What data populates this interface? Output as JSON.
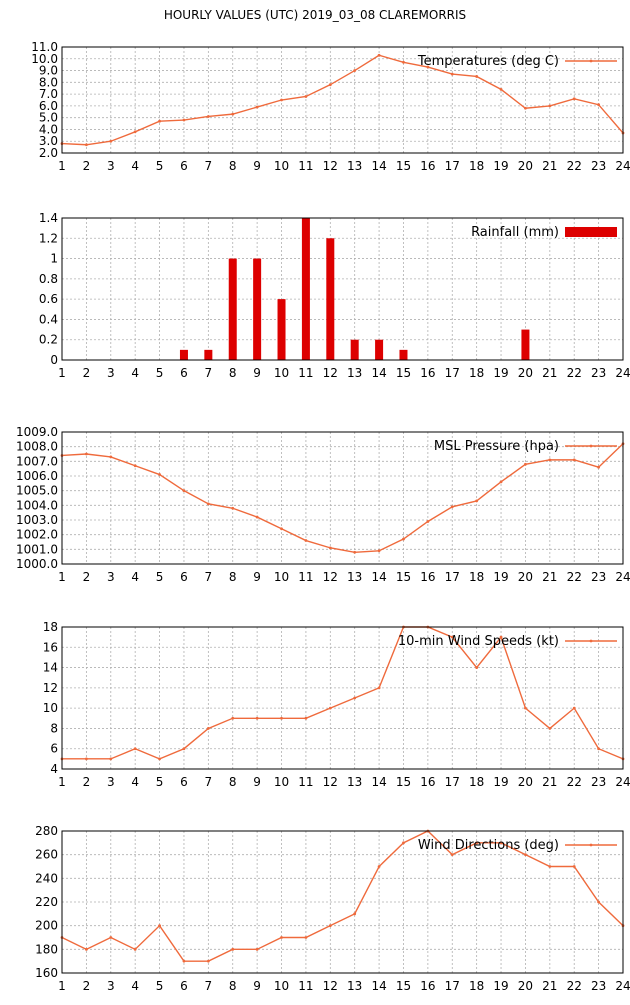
{
  "title": "HOURLY VALUES (UTC) 2019_03_08  CLAREMORRIS",
  "colors": {
    "line": "#ef6a3c",
    "bar": "#dd0000",
    "grid": "#b0b0b0",
    "axis": "#000000"
  },
  "chart_data": [
    {
      "type": "line",
      "legend": "Temperatures (deg C)",
      "legend_position": "top-right",
      "grid": true,
      "x": [
        1,
        2,
        3,
        4,
        5,
        6,
        7,
        8,
        9,
        10,
        11,
        12,
        13,
        14,
        15,
        16,
        17,
        18,
        19,
        20,
        21,
        22,
        23,
        24
      ],
      "xticks": [
        "1",
        "2",
        "3",
        "4",
        "5",
        "6",
        "7",
        "8",
        "9",
        "10",
        "11",
        "12",
        "13",
        "14",
        "15",
        "16",
        "17",
        "18",
        "19",
        "20",
        "21",
        "22",
        "23",
        "24"
      ],
      "values": [
        2.8,
        2.7,
        3.0,
        3.8,
        4.7,
        4.8,
        5.1,
        5.3,
        5.9,
        6.5,
        6.8,
        7.8,
        9.0,
        10.3,
        9.7,
        9.3,
        8.7,
        8.5,
        7.4,
        5.8,
        6.0,
        6.6,
        6.1,
        3.7
      ],
      "ylim": [
        2.0,
        11.0
      ],
      "yticks": [
        "2.0",
        "3.0",
        "4.0",
        "5.0",
        "6.0",
        "7.0",
        "8.0",
        "9.0",
        "10.0",
        "11.0"
      ]
    },
    {
      "type": "bar",
      "legend": "Rainfall (mm)",
      "legend_position": "top-right",
      "grid": true,
      "x": [
        1,
        2,
        3,
        4,
        5,
        6,
        7,
        8,
        9,
        10,
        11,
        12,
        13,
        14,
        15,
        16,
        17,
        18,
        19,
        20,
        21,
        22,
        23,
        24
      ],
      "xticks": [
        "1",
        "2",
        "3",
        "4",
        "5",
        "6",
        "7",
        "8",
        "9",
        "10",
        "11",
        "12",
        "13",
        "14",
        "15",
        "16",
        "17",
        "18",
        "19",
        "20",
        "21",
        "22",
        "23",
        "24"
      ],
      "values": [
        0,
        0,
        0,
        0,
        0,
        0.1,
        0.1,
        1.0,
        1.0,
        0.6,
        1.4,
        1.2,
        0.2,
        0.2,
        0.1,
        0,
        0,
        0,
        0,
        0.3,
        0,
        0,
        0,
        0
      ],
      "ylim": [
        0,
        1.4
      ],
      "yticks": [
        "0",
        "0.2",
        "0.4",
        "0.6",
        "0.8",
        "1",
        "1.2",
        "1.4"
      ]
    },
    {
      "type": "line",
      "legend": "MSL Pressure (hpa)",
      "legend_position": "top-right",
      "grid": true,
      "x": [
        1,
        2,
        3,
        4,
        5,
        6,
        7,
        8,
        9,
        10,
        11,
        12,
        13,
        14,
        15,
        16,
        17,
        18,
        19,
        20,
        21,
        22,
        23,
        24
      ],
      "xticks": [
        "1",
        "2",
        "3",
        "4",
        "5",
        "6",
        "7",
        "8",
        "9",
        "10",
        "11",
        "12",
        "13",
        "14",
        "15",
        "16",
        "17",
        "18",
        "19",
        "20",
        "21",
        "22",
        "23",
        "24"
      ],
      "values": [
        1007.4,
        1007.5,
        1007.3,
        1006.7,
        1006.1,
        1005.0,
        1004.1,
        1003.8,
        1003.2,
        1002.4,
        1001.6,
        1001.1,
        1000.8,
        1000.9,
        1001.7,
        1002.9,
        1003.9,
        1004.3,
        1005.6,
        1006.8,
        1007.1,
        1007.1,
        1006.6,
        1008.2
      ],
      "ylim": [
        1000.0,
        1009.0
      ],
      "yticks": [
        "1000.0",
        "1001.0",
        "1002.0",
        "1003.0",
        "1004.0",
        "1005.0",
        "1006.0",
        "1007.0",
        "1008.0",
        "1009.0"
      ]
    },
    {
      "type": "line",
      "legend": "10-min Wind Speeds (kt)",
      "legend_position": "top-right",
      "grid": true,
      "x": [
        1,
        2,
        3,
        4,
        5,
        6,
        7,
        8,
        9,
        10,
        11,
        12,
        13,
        14,
        15,
        16,
        17,
        18,
        19,
        20,
        21,
        22,
        23,
        24
      ],
      "xticks": [
        "1",
        "2",
        "3",
        "4",
        "5",
        "6",
        "7",
        "8",
        "9",
        "10",
        "11",
        "12",
        "13",
        "14",
        "15",
        "16",
        "17",
        "18",
        "19",
        "20",
        "21",
        "22",
        "23",
        "24"
      ],
      "values": [
        5,
        5,
        5,
        6,
        5,
        6,
        8,
        9,
        9,
        9,
        9,
        10,
        11,
        12,
        18,
        18,
        17,
        14,
        17,
        10,
        8,
        10,
        6,
        5
      ],
      "ylim": [
        4,
        18
      ],
      "yticks": [
        "4",
        "6",
        "8",
        "10",
        "12",
        "14",
        "16",
        "18"
      ]
    },
    {
      "type": "line",
      "legend": "Wind Directions (deg)",
      "legend_position": "top-right",
      "grid": true,
      "x": [
        1,
        2,
        3,
        4,
        5,
        6,
        7,
        8,
        9,
        10,
        11,
        12,
        13,
        14,
        15,
        16,
        17,
        18,
        19,
        20,
        21,
        22,
        23,
        24
      ],
      "xticks": [
        "1",
        "2",
        "3",
        "4",
        "5",
        "6",
        "7",
        "8",
        "9",
        "10",
        "11",
        "12",
        "13",
        "14",
        "15",
        "16",
        "17",
        "18",
        "19",
        "20",
        "21",
        "22",
        "23",
        "24"
      ],
      "values": [
        190,
        180,
        190,
        180,
        200,
        170,
        170,
        180,
        180,
        190,
        190,
        200,
        210,
        250,
        270,
        280,
        260,
        270,
        270,
        260,
        250,
        250,
        220,
        200
      ],
      "ylim": [
        160,
        280
      ],
      "yticks": [
        "160",
        "180",
        "200",
        "220",
        "240",
        "260",
        "280"
      ]
    }
  ]
}
